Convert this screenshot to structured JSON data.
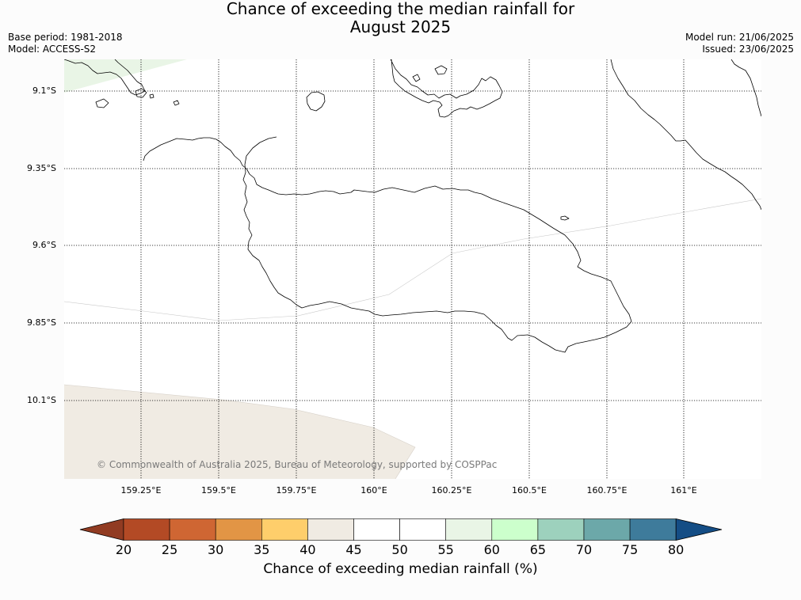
{
  "title_line1": "Chance of exceeding the median rainfall for",
  "title_line2": "August 2025",
  "meta_left": {
    "base_period": "Base period: 1981-2018",
    "model": "Model: ACCESS-S2"
  },
  "meta_right": {
    "model_run": "Model run: 21/06/2025",
    "issued": "Issued: 23/06/2025"
  },
  "latitude_labels": [
    "9.1°S",
    "9.35°S",
    "9.6°S",
    "9.85°S",
    "10.1°S"
  ],
  "longitude_labels": [
    "159.25°E",
    "159.5°E",
    "159.75°E",
    "160°E",
    "160.25°E",
    "160.5°E",
    "160.75°E",
    "161°E"
  ],
  "credit": "© Commonwealth of Australia 2025, Bureau of Meteorology, supported by COSPPac",
  "colorbar": {
    "label": "Chance of exceeding median rainfall (%)",
    "ticks": [
      "20",
      "25",
      "30",
      "35",
      "40",
      "45",
      "50",
      "55",
      "60",
      "65",
      "70",
      "75",
      "80"
    ],
    "colors": [
      "#b34a25",
      "#cf6633",
      "#e29545",
      "#fece6b",
      "#f0ebe3",
      "#ffffff",
      "#ffffff",
      "#e9f5e6",
      "#ccffcc",
      "#9dd1bd",
      "#6ca8a9",
      "#3e7b9b"
    ],
    "under_color": "#913b22",
    "over_color": "#144d85"
  },
  "map_fill_colors": {
    "northwest_region": "#e9f5e6",
    "southwest_region": "#f0ebe3"
  }
}
